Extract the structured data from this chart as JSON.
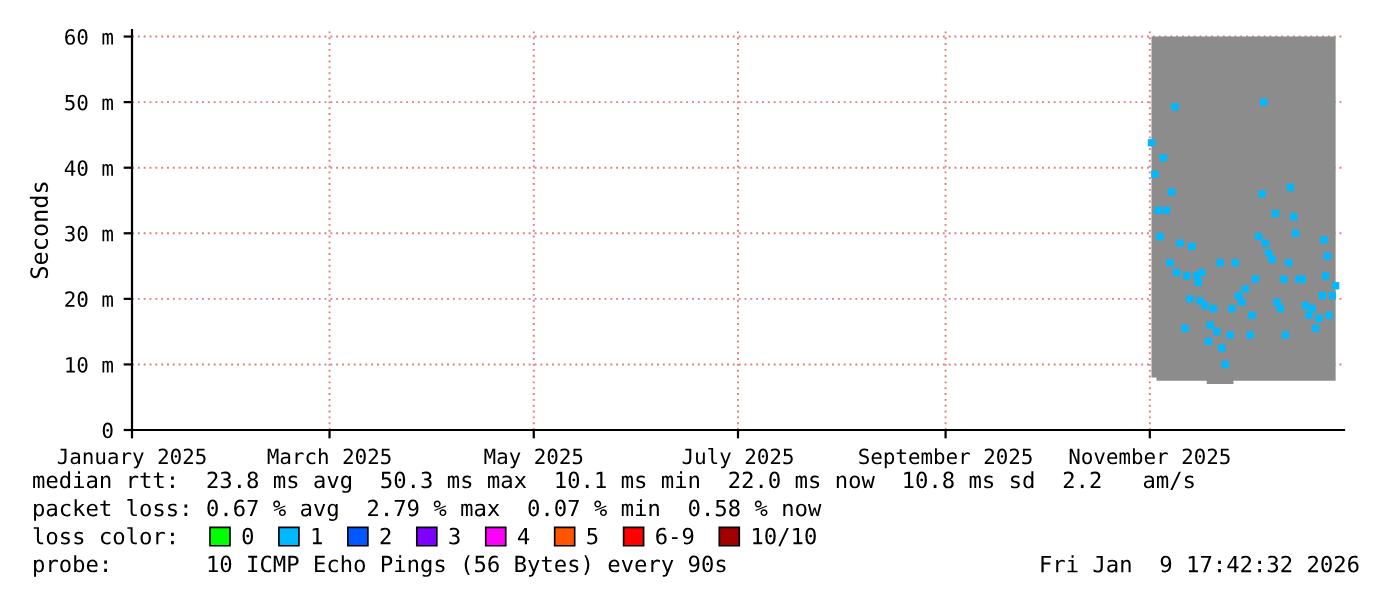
{
  "chart_data": {
    "type": "scatter",
    "ylabel": "Seconds",
    "legend_title": "loss color:",
    "legend": "bottom",
    "marker": "square",
    "grid": true,
    "xlim": [
      "2025-01-01",
      "2025-12-29"
    ],
    "xticks": [
      {
        "value": "2025-01-01",
        "label": "January 2025"
      },
      {
        "value": "2025-03-01",
        "label": "March 2025"
      },
      {
        "value": "2025-05-01",
        "label": "May 2025"
      },
      {
        "value": "2025-07-01",
        "label": "July 2025"
      },
      {
        "value": "2025-09-01",
        "label": "September 2025"
      },
      {
        "value": "2025-11-01",
        "label": "November 2025"
      }
    ],
    "ylim": [
      0,
      61
    ],
    "yticks": [
      0,
      {
        "value": 10,
        "label": "10 m"
      },
      {
        "value": 20,
        "label": "20 m"
      },
      {
        "value": 30,
        "label": "30 m"
      },
      {
        "value": 40,
        "label": "40 m"
      },
      {
        "value": 50,
        "label": "50 m"
      },
      {
        "value": 60,
        "label": "60 m"
      }
    ],
    "x": [
      "2025-11-01T12:00",
      "2025-11-02T12:00",
      "2025-11-03T12:00",
      "2025-11-04T00:00",
      "2025-11-05T00:00",
      "2025-11-06T00:00",
      "2025-11-07T00:00",
      "2025-11-07T12:00",
      "2025-11-08T12:00",
      "2025-11-09T00:00",
      "2025-11-10T00:00",
      "2025-11-11T12:00",
      "2025-11-12T00:00",
      "2025-11-13T00:00",
      "2025-11-13T12:00",
      "2025-11-15T00:00",
      "2025-11-15T12:00",
      "2025-11-16T00:00",
      "2025-11-16T12:00",
      "2025-11-17T12:00",
      "2025-11-18T12:00",
      "2025-11-19T00:00",
      "2025-11-20T00:00",
      "2025-11-21T00:00",
      "2025-11-22T00:00",
      "2025-11-22T12:00",
      "2025-11-23T12:00",
      "2025-11-25T00:00",
      "2025-11-25T12:00",
      "2025-11-26T12:00",
      "2025-11-27T12:00",
      "2025-11-28T12:00",
      "2025-11-29T12:00",
      "2025-12-01T00:00",
      "2025-12-01T12:00",
      "2025-12-02T12:00",
      "2025-12-03T12:00",
      "2025-12-04T12:00",
      "2025-12-05T00:00",
      "2025-12-05T12:00",
      "2025-12-06T12:00",
      "2025-12-07T12:00",
      "2025-12-08T12:00",
      "2025-12-09T00:00",
      "2025-12-10T00:00",
      "2025-12-11T00:00",
      "2025-12-11T12:00",
      "2025-12-12T12:00",
      "2025-12-13T00:00",
      "2025-12-14T00:00",
      "2025-12-14T12:00",
      "2025-12-15T12:00",
      "2025-12-16T12:00",
      "2025-12-17T12:00",
      "2025-12-18T12:00",
      "2025-12-19T12:00",
      "2025-12-20T12:00",
      "2025-12-21T12:00",
      "2025-12-22T12:00",
      "2025-12-23T00:00",
      "2025-12-23T12:00",
      "2025-12-24T00:00",
      "2025-12-24T12:00",
      "2025-12-25T12:00",
      "2025-12-26T12:00"
    ],
    "series": [
      {
        "name": "0",
        "color": "#00ff00",
        "values": [
          null,
          null,
          null,
          null,
          null,
          null,
          null,
          null,
          null,
          null,
          null,
          null,
          null,
          null,
          null,
          null,
          null,
          null,
          null,
          null,
          null,
          null,
          null,
          null,
          null,
          null,
          null,
          null,
          null,
          null,
          null,
          null,
          null,
          null,
          null,
          null,
          null,
          null,
          null,
          null,
          null,
          null,
          null,
          null,
          null,
          null,
          null,
          null,
          null,
          null,
          null,
          null,
          null,
          null,
          null,
          null,
          null,
          null,
          null,
          null,
          null,
          null,
          null,
          null,
          null
        ]
      },
      {
        "name": "1",
        "color": "#00b8ff",
        "values": [
          43.8,
          39,
          33.5,
          29.5,
          41.5,
          33.5,
          25.5,
          36.3,
          49.3,
          24,
          28.5,
          15.5,
          23.5,
          20,
          28,
          23.5,
          22.5,
          19.7,
          24,
          19,
          13.5,
          16,
          18.5,
          15,
          25.5,
          12.5,
          10,
          14.5,
          18.5,
          25.5,
          20.5,
          19.5,
          21.5,
          14.5,
          17.5,
          23,
          29.5,
          36,
          50,
          28.5,
          27,
          26,
          33,
          19.5,
          18.5,
          23,
          14.5,
          25.5,
          37,
          32.5,
          30,
          23,
          23,
          19,
          17.5,
          18.5,
          15.5,
          17,
          20.5,
          29,
          23.5,
          26.5,
          17.5,
          20.5,
          22
        ],
        "lower": [
          8,
          8,
          7.5,
          7.5,
          7.5,
          7.5,
          7.5,
          7.5,
          7.5,
          7.5,
          7.5,
          7.5,
          7.5,
          7.5,
          7.5,
          7.5,
          7.5,
          7.5,
          7.5,
          7.5,
          7,
          7,
          7,
          7,
          7,
          7,
          7,
          7,
          7,
          7.5,
          7.5,
          7.5,
          7.5,
          7.5,
          7.5,
          7.5,
          7.5,
          7.5,
          7.5,
          7.5,
          7.5,
          7.5,
          7.5,
          7.5,
          7.5,
          7.5,
          7.5,
          7.5,
          7.5,
          7.5,
          7.5,
          7.5,
          7.5,
          7.5,
          7.5,
          7.5,
          7.5,
          7.5,
          7.5,
          7.5,
          7.5,
          7.5,
          7.5,
          7.5,
          7.5
        ],
        "upper": [
          60,
          60,
          60,
          60,
          60,
          60,
          60,
          60,
          60,
          60,
          60,
          60,
          60,
          60,
          60,
          60,
          60,
          60,
          60,
          60,
          60,
          60,
          60,
          60,
          60,
          60,
          60,
          60,
          60,
          60,
          60,
          60,
          60,
          60,
          60,
          60,
          60,
          60,
          60,
          60,
          60,
          60,
          60,
          60,
          60,
          60,
          60,
          60,
          60,
          60,
          60,
          60,
          60,
          60,
          60,
          60,
          60,
          60,
          60,
          60,
          60,
          60,
          60,
          60,
          60
        ]
      },
      {
        "name": "2",
        "color": "#0059ff",
        "values": [
          null,
          null,
          null,
          null,
          null,
          null,
          null,
          null,
          null,
          null,
          null,
          null,
          null,
          null,
          null,
          null,
          null,
          null,
          null,
          null,
          null,
          null,
          null,
          null,
          null,
          null,
          null,
          null,
          null,
          null,
          null,
          null,
          null,
          null,
          null,
          null,
          null,
          null,
          null,
          null,
          null,
          null,
          null,
          null,
          null,
          null,
          null,
          null,
          null,
          null,
          null,
          null,
          null,
          null,
          null,
          null,
          null,
          null,
          null,
          null,
          null,
          null,
          null,
          null,
          null
        ]
      },
      {
        "name": "3",
        "color": "#7e00ff",
        "values": [
          null,
          null,
          null,
          null,
          null,
          null,
          null,
          null,
          null,
          null,
          null,
          null,
          null,
          null,
          null,
          null,
          null,
          null,
          null,
          null,
          null,
          null,
          null,
          null,
          null,
          null,
          null,
          null,
          null,
          null,
          null,
          null,
          null,
          null,
          null,
          null,
          null,
          null,
          null,
          null,
          null,
          null,
          null,
          null,
          null,
          null,
          null,
          null,
          null,
          null,
          null,
          null,
          null,
          null,
          null,
          null,
          null,
          null,
          null,
          null,
          null,
          null,
          null,
          null,
          null
        ]
      },
      {
        "name": "4",
        "color": "#ff00ff",
        "values": [
          null,
          null,
          null,
          null,
          null,
          null,
          null,
          null,
          null,
          null,
          null,
          null,
          null,
          null,
          null,
          null,
          null,
          null,
          null,
          null,
          null,
          null,
          null,
          null,
          null,
          null,
          null,
          null,
          null,
          null,
          null,
          null,
          null,
          null,
          null,
          null,
          null,
          null,
          null,
          null,
          null,
          null,
          null,
          null,
          null,
          null,
          null,
          null,
          null,
          null,
          null,
          null,
          null,
          null,
          null,
          null,
          null,
          null,
          null,
          null,
          null,
          null,
          null,
          null,
          null
        ]
      },
      {
        "name": "5",
        "color": "#ff5500",
        "values": [
          null,
          null,
          null,
          null,
          null,
          null,
          null,
          null,
          null,
          null,
          null,
          null,
          null,
          null,
          null,
          null,
          null,
          null,
          null,
          null,
          null,
          null,
          null,
          null,
          null,
          null,
          null,
          null,
          null,
          null,
          null,
          null,
          null,
          null,
          null,
          null,
          null,
          null,
          null,
          null,
          null,
          null,
          null,
          null,
          null,
          null,
          null,
          null,
          null,
          null,
          null,
          null,
          null,
          null,
          null,
          null,
          null,
          null,
          null,
          null,
          null,
          null,
          null,
          null,
          null
        ]
      },
      {
        "name": "6-9",
        "color": "#ff0000",
        "values": [
          null,
          null,
          null,
          null,
          null,
          null,
          null,
          null,
          null,
          null,
          null,
          null,
          null,
          null,
          null,
          null,
          null,
          null,
          null,
          null,
          null,
          null,
          null,
          null,
          null,
          null,
          null,
          null,
          null,
          null,
          null,
          null,
          null,
          null,
          null,
          null,
          null,
          null,
          null,
          null,
          null,
          null,
          null,
          null,
          null,
          null,
          null,
          null,
          null,
          null,
          null,
          null,
          null,
          null,
          null,
          null,
          null,
          null,
          null,
          null,
          null,
          null,
          null,
          null,
          null
        ]
      },
      {
        "name": "10/10",
        "color": "#a00000",
        "values": [
          null,
          null,
          null,
          null,
          null,
          null,
          null,
          null,
          null,
          null,
          null,
          null,
          null,
          null,
          null,
          null,
          null,
          null,
          null,
          null,
          null,
          null,
          null,
          null,
          null,
          null,
          null,
          null,
          null,
          null,
          null,
          null,
          null,
          null,
          null,
          null,
          null,
          null,
          null,
          null,
          null,
          null,
          null,
          null,
          null,
          null,
          null,
          null,
          null,
          null,
          null,
          null,
          null,
          null,
          null,
          null,
          null,
          null,
          null,
          null,
          null,
          null,
          null,
          null,
          null
        ]
      }
    ],
    "annotations": [
      "median rtt:  23.8 ms avg  50.3 ms max  10.1 ms min  22.0 ms now  10.8 ms sd  2.2   am/s",
      "packet loss: 0.67 % avg  2.79 % max  0.07 % min  0.58 % now",
      "probe:       10 ICMP Echo Pings (56 Bytes) every 90s",
      "Fri Jan  9 17:42:32 2026"
    ]
  }
}
